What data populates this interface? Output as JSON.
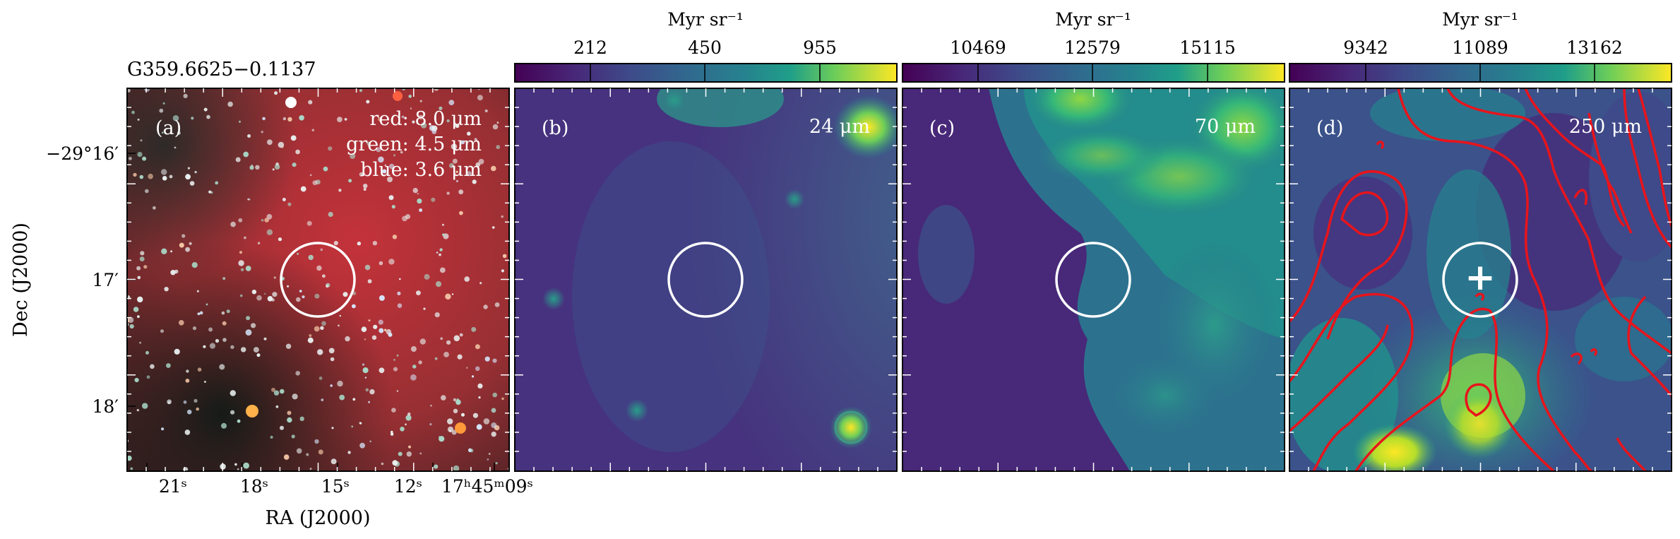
{
  "figure": {
    "source_name": "G359.6625−0.1137",
    "ra_label": "RA (J2000)",
    "dec_label": "Dec (J2000)",
    "ra_ticks": [
      "21ˢ",
      "18ˢ",
      "15ˢ",
      "12ˢ",
      "17ʰ45ᵐ09ˢ"
    ],
    "dec_ticks": [
      "−29°16′",
      "17′",
      "18′"
    ],
    "panels": [
      {
        "tag": "(a)",
        "legend": [
          "red: 8.0 μm",
          "green: 4.5 μm",
          "blue: 3.6 μm"
        ],
        "image": "rgb-composite"
      },
      {
        "tag": "(b)",
        "band": "24 μm",
        "colorbar": {
          "unit": "Myr sr⁻¹",
          "ticks": [
            "212",
            "450",
            "955"
          ]
        }
      },
      {
        "tag": "(c)",
        "band": "70 μm",
        "colorbar": {
          "unit": "Myr sr⁻¹",
          "ticks": [
            "10469",
            "12579",
            "15115"
          ]
        }
      },
      {
        "tag": "(d)",
        "band": "250 μm",
        "colorbar": {
          "unit": "Myr sr⁻¹",
          "ticks": [
            "9342",
            "11089",
            "13162"
          ]
        },
        "marker": "+"
      }
    ],
    "colors": {
      "viridis_dark": "#440154",
      "viridis_mid": "#21918c",
      "viridis_light": "#fde725",
      "contour": "#e8141c",
      "circle": "#ffffff"
    }
  }
}
